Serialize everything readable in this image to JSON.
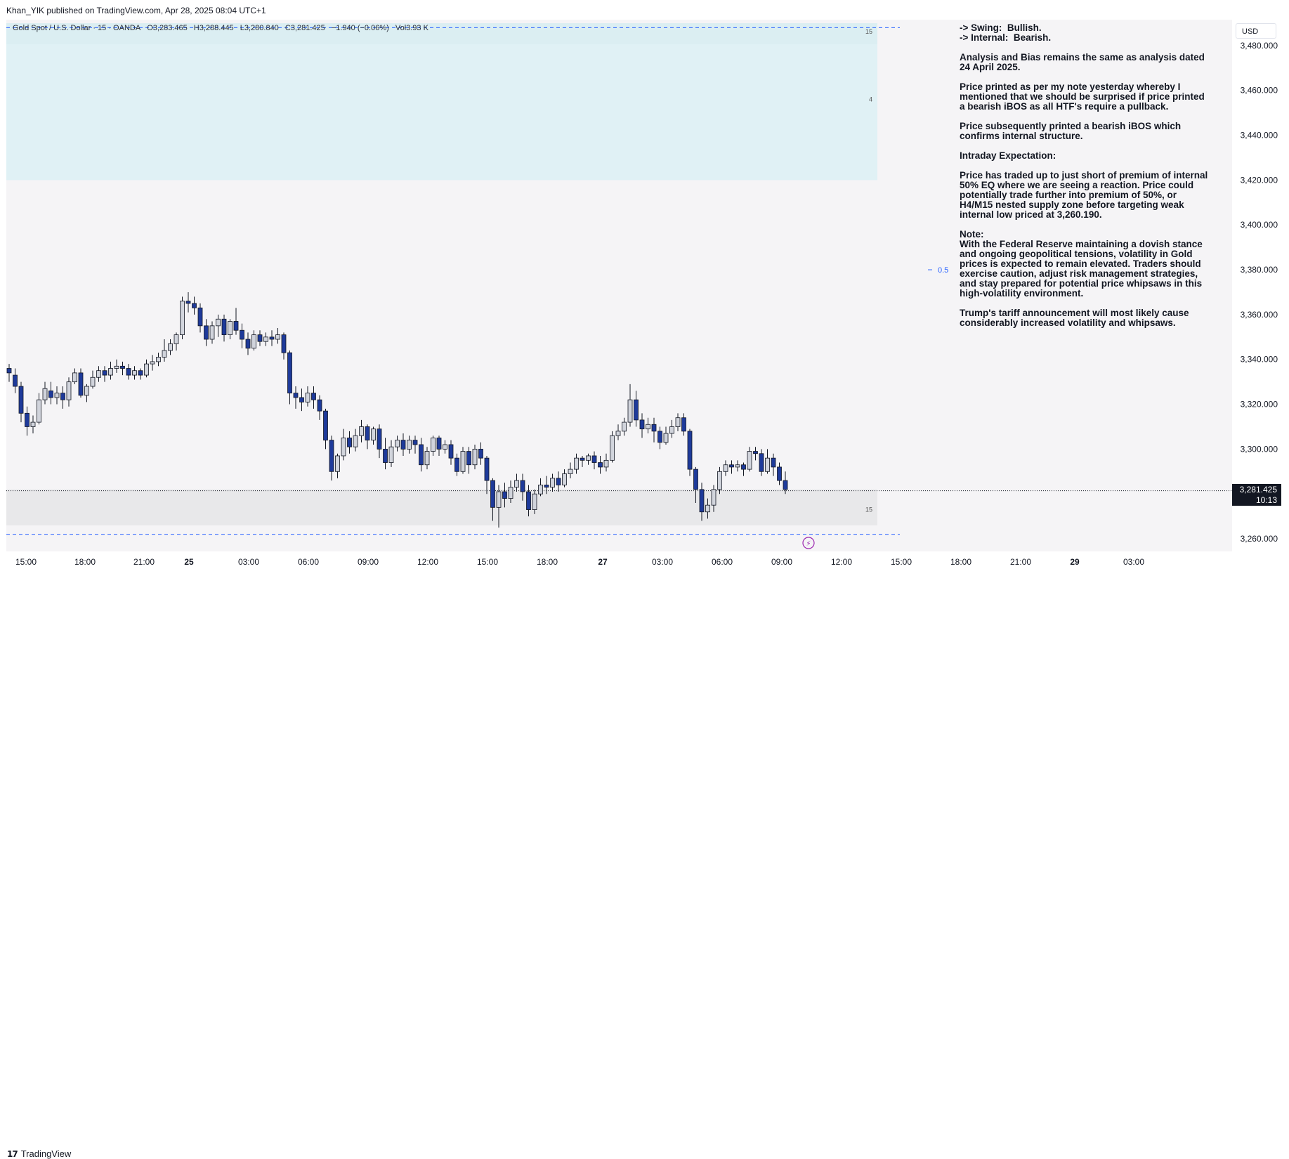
{
  "publisher": "Khan_YIK published on TradingView.com, Apr 28, 2025 08:04 UTC+1",
  "legend": {
    "symbol": "Gold Spot / U.S. Dollar · 15 · OANDA",
    "open": "O3,283.465",
    "high": "H3,288.445",
    "low": "L3,280.840",
    "close": "C3,281.425",
    "change": "−1.940 (−0.06%)",
    "volume": "Vol3.93 K"
  },
  "currency": "USD",
  "price_tag": {
    "price": "3,281.425",
    "countdown": "10:13"
  },
  "zone_labels": {
    "upper_top": "15",
    "upper_mid": "4",
    "lower": "15",
    "eq": "0.5"
  },
  "annotation": [
    "-> Swing:  Bullish.\n-> Internal:  Bearish.",
    "Analysis and Bias remains the same as analysis dated 24 April 2025.",
    "Price printed as per my note yesterday whereby I mentioned that we should be surprised if price printed a bearish iBOS as all HTF's require a pullback.",
    "Price subsequently printed a bearish iBOS which confirms internal structure.",
    "Intraday Expectation:",
    "Price has traded up to just short of premium of internal 50% EQ where we are seeing a reaction. Price could potentially trade further into premium of 50%, or H4/M15 nested supply zone before targeting weak internal low priced at 3,260.190.",
    "Note:\nWith the Federal Reserve maintaining a dovish stance and ongoing geopolitical tensions, volatility in Gold prices is expected to remain elevated. Traders should exercise caution, adjust risk management strategies, and stay prepared for potential price whipsaws in this high-volatility environment.",
    "Trump's tariff announcement will most likely cause considerably increased volatility and whipsaws."
  ],
  "footer_brand": "TradingView",
  "colors": {
    "up": "#d1d4dc",
    "down": "#1e3a9a",
    "zone_supply": "#e0f1f5",
    "zone_demand": "#e8e8ea",
    "dashed": "#2962ff"
  },
  "chart_data": {
    "type": "candlestick",
    "y_axis": {
      "min": 3255,
      "max": 3490,
      "ticks": [
        3260,
        3280,
        3300,
        3320,
        3340,
        3360,
        3380,
        3400,
        3420,
        3440,
        3460,
        3480
      ],
      "tick_labels": [
        "3,260.000",
        "3,280.000",
        "3,300.000",
        "3,320.000",
        "3,340.000",
        "3,360.000",
        "3,380.000",
        "3,400.000",
        "3,420.000",
        "3,440.000",
        "3,460.000",
        "3,480.000"
      ]
    },
    "x_axis": {
      "tick_labels": [
        "15:00",
        "18:00",
        "21:00",
        "25",
        "03:00",
        "06:00",
        "09:00",
        "12:00",
        "15:00",
        "18:00",
        "27",
        "03:00",
        "06:00",
        "09:00",
        "12:00",
        "15:00",
        "18:00",
        "21:00",
        "29",
        "03:00"
      ]
    },
    "last_price": 3281.425,
    "levels": {
      "supply_zone": [
        3420,
        3490
      ],
      "demand_zone": [
        3266,
        3282
      ],
      "eq": 3380,
      "dashed_top": 3488,
      "dashed_bottom": 3262
    },
    "candles": [
      [
        3336,
        3334,
        3330,
        3338
      ],
      [
        3333,
        3328,
        3325,
        3336
      ],
      [
        3328,
        3316,
        3312,
        3330
      ],
      [
        3316,
        3310,
        3306,
        3319
      ],
      [
        3310,
        3312,
        3307,
        3315
      ],
      [
        3312,
        3322,
        3311,
        3325
      ],
      [
        3322,
        3327,
        3320,
        3330
      ],
      [
        3326,
        3323,
        3320,
        3330
      ],
      [
        3323,
        3325,
        3320,
        3328
      ],
      [
        3325,
        3322,
        3318,
        3328
      ],
      [
        3322,
        3330,
        3319,
        3332
      ],
      [
        3330,
        3334,
        3329,
        3336
      ],
      [
        3334,
        3324,
        3323,
        3336
      ],
      [
        3324,
        3328,
        3321,
        3329
      ],
      [
        3328,
        3332,
        3327,
        3335
      ],
      [
        3332,
        3335,
        3330,
        3337
      ],
      [
        3335,
        3333,
        3330,
        3337
      ],
      [
        3333,
        3336,
        3331,
        3339
      ],
      [
        3336,
        3337,
        3334,
        3340
      ],
      [
        3337,
        3336,
        3333,
        3339
      ],
      [
        3336,
        3333,
        3331,
        3338
      ],
      [
        3333,
        3335,
        3331,
        3337
      ],
      [
        3335,
        3333,
        3331,
        3336
      ],
      [
        3333,
        3338,
        3332,
        3340
      ],
      [
        3338,
        3339,
        3335,
        3342
      ],
      [
        3339,
        3341,
        3337,
        3343
      ],
      [
        3341,
        3344,
        3339,
        3349
      ],
      [
        3344,
        3347,
        3342,
        3349
      ],
      [
        3347,
        3351,
        3344,
        3352
      ],
      [
        3351,
        3366,
        3349,
        3368
      ],
      [
        3366,
        3365,
        3361,
        3370
      ],
      [
        3365,
        3363,
        3360,
        3368
      ],
      [
        3363,
        3355,
        3352,
        3365
      ],
      [
        3355,
        3349,
        3346,
        3358
      ],
      [
        3349,
        3355,
        3347,
        3357
      ],
      [
        3355,
        3358,
        3350,
        3360
      ],
      [
        3358,
        3351,
        3348,
        3360
      ],
      [
        3351,
        3357,
        3349,
        3358
      ],
      [
        3357,
        3353,
        3351,
        3363
      ],
      [
        3353,
        3349,
        3345,
        3356
      ],
      [
        3349,
        3345,
        3342,
        3352
      ],
      [
        3345,
        3351,
        3344,
        3353
      ],
      [
        3351,
        3348,
        3346,
        3353
      ],
      [
        3348,
        3350,
        3346,
        3352
      ],
      [
        3350,
        3349,
        3346,
        3353
      ],
      [
        3349,
        3351,
        3347,
        3354
      ],
      [
        3351,
        3343,
        3340,
        3352
      ],
      [
        3343,
        3325,
        3320,
        3344
      ],
      [
        3325,
        3323,
        3318,
        3328
      ],
      [
        3323,
        3321,
        3317,
        3327
      ],
      [
        3321,
        3325,
        3319,
        3328
      ],
      [
        3325,
        3322,
        3318,
        3328
      ],
      [
        3322,
        3317,
        3313,
        3324
      ],
      [
        3317,
        3304,
        3300,
        3318
      ],
      [
        3304,
        3290,
        3286,
        3306
      ],
      [
        3290,
        3297,
        3287,
        3298
      ],
      [
        3297,
        3305,
        3295,
        3309
      ],
      [
        3305,
        3301,
        3298,
        3308
      ],
      [
        3301,
        3306,
        3299,
        3309
      ],
      [
        3306,
        3310,
        3303,
        3313
      ],
      [
        3310,
        3304,
        3300,
        3311
      ],
      [
        3304,
        3309,
        3302,
        3310
      ],
      [
        3309,
        3300,
        3296,
        3311
      ],
      [
        3300,
        3294,
        3291,
        3305
      ],
      [
        3294,
        3301,
        3292,
        3304
      ],
      [
        3301,
        3304,
        3299,
        3306
      ],
      [
        3304,
        3300,
        3297,
        3307
      ],
      [
        3300,
        3304,
        3298,
        3306
      ],
      [
        3304,
        3302,
        3298,
        3306
      ],
      [
        3302,
        3293,
        3290,
        3305
      ],
      [
        3293,
        3299,
        3291,
        3301
      ],
      [
        3299,
        3305,
        3297,
        3306
      ],
      [
        3305,
        3300,
        3297,
        3306
      ],
      [
        3300,
        3302,
        3298,
        3304
      ],
      [
        3302,
        3296,
        3293,
        3304
      ],
      [
        3296,
        3290,
        3288,
        3298
      ],
      [
        3290,
        3299,
        3289,
        3301
      ],
      [
        3299,
        3293,
        3289,
        3301
      ],
      [
        3293,
        3300,
        3291,
        3302
      ],
      [
        3300,
        3296,
        3293,
        3303
      ],
      [
        3296,
        3286,
        3280,
        3297
      ],
      [
        3286,
        3274,
        3268,
        3287
      ],
      [
        3274,
        3281,
        3265,
        3284
      ],
      [
        3281,
        3278,
        3274,
        3285
      ],
      [
        3278,
        3283,
        3276,
        3286
      ],
      [
        3283,
        3286,
        3281,
        3289
      ],
      [
        3286,
        3281,
        3277,
        3289
      ],
      [
        3281,
        3273,
        3270,
        3284
      ],
      [
        3273,
        3280,
        3271,
        3282
      ],
      [
        3280,
        3284,
        3279,
        3287
      ],
      [
        3284,
        3283,
        3280,
        3288
      ],
      [
        3283,
        3287,
        3281,
        3289
      ],
      [
        3287,
        3284,
        3281,
        3290
      ],
      [
        3284,
        3289,
        3283,
        3291
      ],
      [
        3289,
        3291,
        3287,
        3294
      ],
      [
        3291,
        3296,
        3289,
        3298
      ],
      [
        3296,
        3295,
        3292,
        3297
      ],
      [
        3295,
        3297,
        3293,
        3298
      ],
      [
        3297,
        3294,
        3291,
        3299
      ],
      [
        3294,
        3292,
        3289,
        3297
      ],
      [
        3292,
        3295,
        3290,
        3298
      ],
      [
        3295,
        3306,
        3294,
        3308
      ],
      [
        3306,
        3308,
        3304,
        3311
      ],
      [
        3308,
        3312,
        3306,
        3314
      ],
      [
        3312,
        3322,
        3310,
        3329
      ],
      [
        3322,
        3313,
        3310,
        3326
      ],
      [
        3313,
        3309,
        3305,
        3316
      ],
      [
        3309,
        3311,
        3307,
        3314
      ],
      [
        3311,
        3308,
        3303,
        3314
      ],
      [
        3308,
        3303,
        3300,
        3310
      ],
      [
        3303,
        3307,
        3302,
        3310
      ],
      [
        3307,
        3310,
        3305,
        3313
      ],
      [
        3310,
        3314,
        3308,
        3316
      ],
      [
        3314,
        3308,
        3306,
        3316
      ],
      [
        3308,
        3291,
        3288,
        3309
      ],
      [
        3291,
        3282,
        3276,
        3292
      ],
      [
        3282,
        3272,
        3268,
        3285
      ],
      [
        3272,
        3275,
        3269,
        3278
      ],
      [
        3275,
        3282,
        3272,
        3284
      ],
      [
        3282,
        3290,
        3280,
        3292
      ],
      [
        3290,
        3293,
        3288,
        3295
      ],
      [
        3293,
        3292,
        3289,
        3295
      ],
      [
        3292,
        3293,
        3290,
        3295
      ],
      [
        3293,
        3291,
        3288,
        3294
      ],
      [
        3291,
        3299,
        3290,
        3301
      ],
      [
        3299,
        3298,
        3295,
        3301
      ],
      [
        3298,
        3290,
        3288,
        3300
      ],
      [
        3290,
        3296,
        3289,
        3300
      ],
      [
        3296,
        3292,
        3288,
        3298
      ],
      [
        3292,
        3286,
        3284,
        3294
      ],
      [
        3286,
        3282,
        3280,
        3290
      ]
    ]
  }
}
